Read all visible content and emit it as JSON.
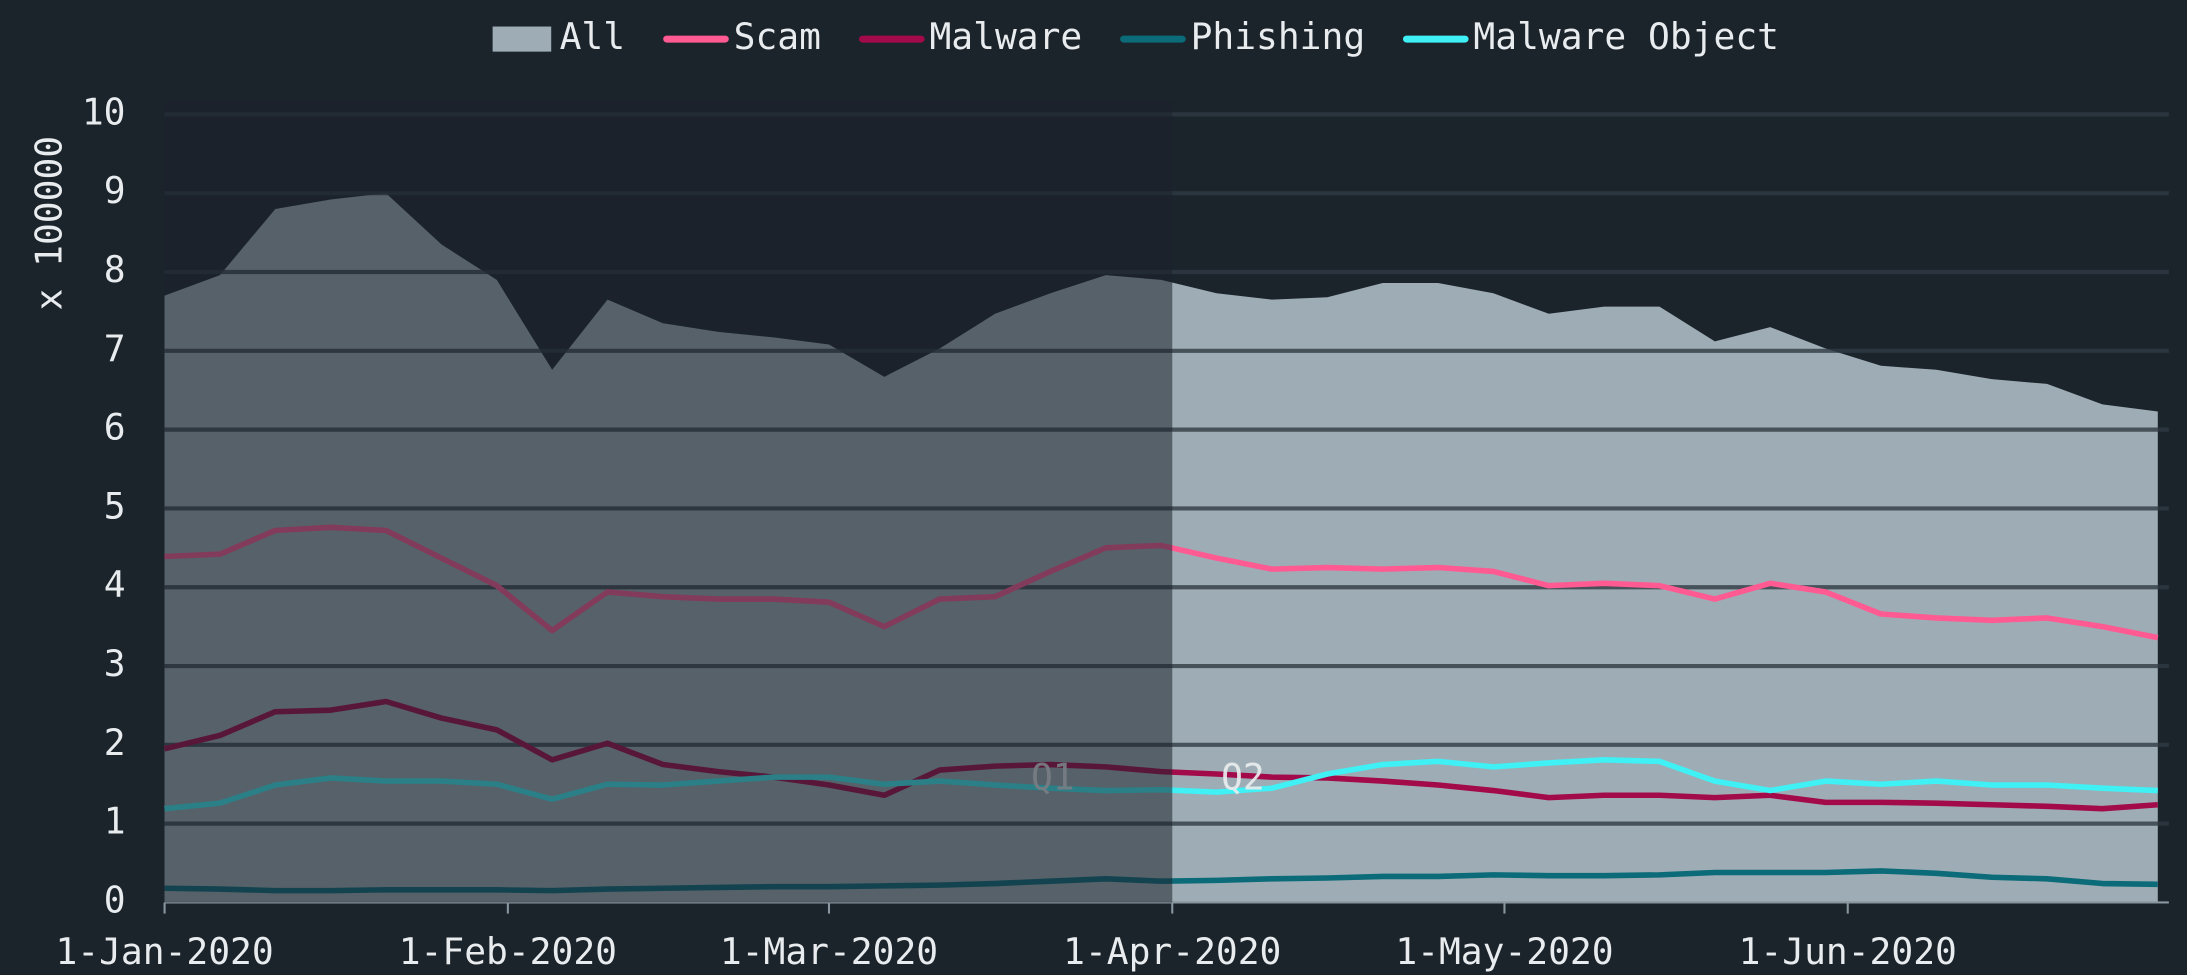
{
  "chart_data": {
    "type": "line",
    "y_label": "x 100000",
    "x": [
      "2020-01-01",
      "2020-01-06",
      "2020-01-11",
      "2020-01-16",
      "2020-01-21",
      "2020-01-26",
      "2020-01-31",
      "2020-02-05",
      "2020-02-10",
      "2020-02-15",
      "2020-02-20",
      "2020-02-25",
      "2020-03-01",
      "2020-03-06",
      "2020-03-11",
      "2020-03-16",
      "2020-03-21",
      "2020-03-26",
      "2020-03-31",
      "2020-04-05",
      "2020-04-10",
      "2020-04-15",
      "2020-04-20",
      "2020-04-25",
      "2020-04-30",
      "2020-05-05",
      "2020-05-10",
      "2020-05-15",
      "2020-05-20",
      "2020-05-25",
      "2020-05-30",
      "2020-06-04",
      "2020-06-09",
      "2020-06-14",
      "2020-06-19",
      "2020-06-24",
      "2020-06-29"
    ],
    "series": [
      {
        "name": "All",
        "color": "#9eadb5",
        "area": true,
        "values": [
          7.7,
          7.96,
          8.8,
          8.92,
          9.0,
          8.35,
          7.9,
          6.76,
          7.65,
          7.35,
          7.24,
          7.17,
          7.08,
          6.67,
          7.03,
          7.47,
          7.73,
          7.96,
          7.9,
          7.73,
          7.65,
          7.68,
          7.86,
          7.86,
          7.73,
          7.47,
          7.56,
          7.56,
          7.12,
          7.3,
          7.03,
          6.81,
          6.76,
          6.64,
          6.58,
          6.32,
          6.23
        ]
      },
      {
        "name": "Scam",
        "color": "#ff5a92",
        "values": [
          4.39,
          4.42,
          4.72,
          4.76,
          4.72,
          4.37,
          4.02,
          3.45,
          3.94,
          3.88,
          3.85,
          3.85,
          3.81,
          3.5,
          3.85,
          3.88,
          4.2,
          4.5,
          4.53,
          4.37,
          4.23,
          4.25,
          4.23,
          4.25,
          4.2,
          4.02,
          4.05,
          4.02,
          3.85,
          4.05,
          3.94,
          3.66,
          3.61,
          3.58,
          3.61,
          3.5,
          3.36
        ]
      },
      {
        "name": "Malware",
        "color": "#a30a4a",
        "values": [
          1.95,
          2.12,
          2.42,
          2.44,
          2.55,
          2.34,
          2.19,
          1.81,
          2.02,
          1.75,
          1.66,
          1.59,
          1.49,
          1.36,
          1.68,
          1.73,
          1.75,
          1.72,
          1.66,
          1.63,
          1.59,
          1.58,
          1.54,
          1.49,
          1.42,
          1.33,
          1.36,
          1.36,
          1.33,
          1.36,
          1.27,
          1.27,
          1.26,
          1.24,
          1.22,
          1.19,
          1.24
        ]
      },
      {
        "name": "Phishing",
        "color": "#0b6b78",
        "values": [
          0.18,
          0.17,
          0.15,
          0.15,
          0.16,
          0.16,
          0.16,
          0.15,
          0.17,
          0.18,
          0.19,
          0.2,
          0.2,
          0.21,
          0.22,
          0.24,
          0.27,
          0.3,
          0.27,
          0.28,
          0.3,
          0.31,
          0.33,
          0.33,
          0.35,
          0.34,
          0.34,
          0.35,
          0.38,
          0.38,
          0.38,
          0.4,
          0.37,
          0.32,
          0.3,
          0.24,
          0.23
        ]
      },
      {
        "name": "Malware Object",
        "color": "#3ff0f5",
        "values": [
          1.19,
          1.26,
          1.49,
          1.58,
          1.54,
          1.54,
          1.5,
          1.31,
          1.5,
          1.49,
          1.54,
          1.59,
          1.59,
          1.5,
          1.54,
          1.49,
          1.45,
          1.42,
          1.43,
          1.4,
          1.45,
          1.63,
          1.75,
          1.79,
          1.72,
          1.77,
          1.81,
          1.79,
          1.54,
          1.42,
          1.54,
          1.5,
          1.54,
          1.49,
          1.49,
          1.45,
          1.42
        ]
      }
    ],
    "xlim": [
      "2020-01-01",
      "2020-06-30"
    ],
    "xticks": [
      {
        "value": "2020-01-01",
        "label": "1-Jan-2020"
      },
      {
        "value": "2020-02-01",
        "label": "1-Feb-2020"
      },
      {
        "value": "2020-03-01",
        "label": "1-Mar-2020"
      },
      {
        "value": "2020-04-01",
        "label": "1-Apr-2020"
      },
      {
        "value": "2020-05-01",
        "label": "1-May-2020"
      },
      {
        "value": "2020-06-01",
        "label": "1-Jun-2020"
      }
    ],
    "ylim": [
      0,
      10
    ],
    "yticks": [
      0,
      1,
      2,
      3,
      4,
      5,
      6,
      7,
      8,
      9,
      10
    ],
    "grid": true,
    "legend": "top",
    "quarters": [
      {
        "label": "Q1",
        "start": "2020-01-01",
        "end": "2020-04-01"
      },
      {
        "label": "Q2",
        "start": "2020-04-01",
        "end": "2020-06-30"
      }
    ]
  }
}
